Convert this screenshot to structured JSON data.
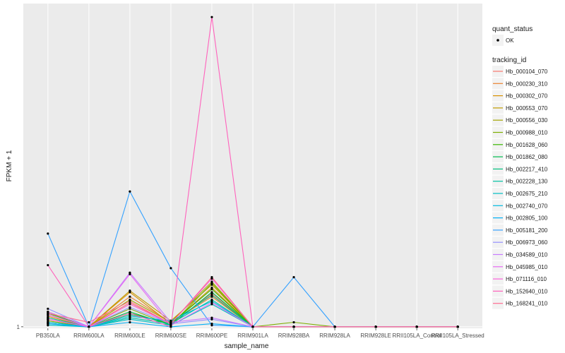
{
  "chart_data": {
    "type": "line",
    "xlabel": "sample_name",
    "ylabel": "FPKM + 1",
    "ytick": "1",
    "categories": [
      "PB350LA",
      "RRIM600LA",
      "RRIM600LE",
      "RRIM600SE",
      "RRIM600PE",
      "RRIM901LA",
      "RRIM928BA",
      "RRIM928LA",
      "RRIM928LE",
      "RRII105LA_Control",
      "RRII105LA_Stressed"
    ],
    "category_labels": [
      "PB350LA",
      "RRIM600LA",
      "RRIM600LE",
      "RRIM600SE",
      "RRIM600PE",
      "RRIM901LA",
      "RRIM928BA",
      "RRIM928LA",
      "RRIM928LE",
      "RRII105LA_Control",
      "RRII105LA_Stressed"
    ],
    "ylim": [
      0.9,
      22.5
    ],
    "legend": {
      "quant_title": "quant_status",
      "quant_label": "OK",
      "tracking_title": "tracking_id"
    },
    "series": [
      {
        "name": "Hb_000104_070",
        "color": "#F8766D",
        "values": [
          1.6,
          1.0,
          2.6,
          1.2,
          3.2,
          1.0,
          1.0,
          1.0,
          1.0,
          1.0,
          1.0
        ]
      },
      {
        "name": "Hb_000230_310",
        "color": "#EA8331",
        "values": [
          1.5,
          1.0,
          3.0,
          1.3,
          3.0,
          1.0,
          1.0,
          1.0,
          1.0,
          1.0,
          1.0
        ]
      },
      {
        "name": "Hb_000302_070",
        "color": "#D89000",
        "values": [
          1.7,
          1.0,
          3.3,
          1.2,
          3.6,
          1.0,
          1.0,
          1.0,
          1.0,
          1.0,
          1.0
        ]
      },
      {
        "name": "Hb_000553_070",
        "color": "#C09B00",
        "values": [
          2.0,
          1.0,
          3.4,
          1.4,
          3.8,
          1.0,
          1.0,
          1.0,
          1.0,
          1.0,
          1.0
        ]
      },
      {
        "name": "Hb_000556_030",
        "color": "#A3A500",
        "values": [
          1.8,
          1.0,
          2.8,
          1.3,
          4.0,
          1.0,
          1.0,
          1.0,
          1.0,
          1.0,
          1.0
        ]
      },
      {
        "name": "Hb_000988_010",
        "color": "#7CAE00",
        "values": [
          1.4,
          1.0,
          2.2,
          1.1,
          3.9,
          1.0,
          1.3,
          1.0,
          1.0,
          1.0,
          1.0
        ]
      },
      {
        "name": "Hb_001628_060",
        "color": "#39B600",
        "values": [
          1.9,
          1.0,
          1.9,
          1.2,
          3.5,
          1.0,
          1.0,
          1.0,
          1.0,
          1.0,
          1.0
        ]
      },
      {
        "name": "Hb_001862_080",
        "color": "#00BB4E",
        "values": [
          1.3,
          1.0,
          2.0,
          1.1,
          3.3,
          1.0,
          1.0,
          1.0,
          1.0,
          1.0,
          1.0
        ]
      },
      {
        "name": "Hb_002217_410",
        "color": "#00BF7D",
        "values": [
          1.2,
          1.0,
          1.8,
          1.3,
          3.1,
          1.0,
          1.0,
          1.0,
          1.0,
          1.0,
          1.0
        ]
      },
      {
        "name": "Hb_002228_130",
        "color": "#00C1A3",
        "values": [
          1.6,
          1.0,
          1.6,
          1.2,
          2.8,
          1.0,
          1.0,
          1.0,
          1.0,
          1.0,
          1.0
        ]
      },
      {
        "name": "Hb_002675_210",
        "color": "#00BFC4",
        "values": [
          1.1,
          1.0,
          1.5,
          1.1,
          2.5,
          1.0,
          1.0,
          1.0,
          1.0,
          1.0,
          1.0
        ]
      },
      {
        "name": "Hb_002740_070",
        "color": "#00BAE0",
        "values": [
          1.3,
          1.0,
          1.7,
          1.4,
          2.7,
          1.0,
          1.0,
          1.0,
          1.0,
          1.0,
          1.0
        ]
      },
      {
        "name": "Hb_002805_100",
        "color": "#00B0F6",
        "values": [
          1.2,
          1.0,
          1.3,
          1.0,
          1.2,
          1.0,
          1.0,
          1.0,
          1.0,
          1.0,
          1.0
        ]
      },
      {
        "name": "Hb_005181_200",
        "color": "#35A2FF",
        "values": [
          7.2,
          1.0,
          10.0,
          4.9,
          1.1,
          1.0,
          4.3,
          1.0,
          1.0,
          1.0,
          1.0
        ]
      },
      {
        "name": "Hb_006973_060",
        "color": "#9590FF",
        "values": [
          2.2,
          1.0,
          2.3,
          1.2,
          1.5,
          1.0,
          1.0,
          1.0,
          1.0,
          1.0,
          1.0
        ]
      },
      {
        "name": "Hb_034589_010",
        "color": "#C77CFF",
        "values": [
          2.0,
          1.0,
          4.6,
          1.3,
          1.6,
          1.0,
          1.0,
          1.0,
          1.0,
          1.0,
          1.0
        ]
      },
      {
        "name": "Hb_045985_010",
        "color": "#E76BF3",
        "values": [
          1.8,
          1.0,
          4.5,
          1.1,
          2.6,
          1.0,
          1.0,
          1.0,
          1.0,
          1.0,
          1.0
        ]
      },
      {
        "name": "Hb_071116_010",
        "color": "#FA62DB",
        "values": [
          1.5,
          1.0,
          2.5,
          1.2,
          4.2,
          1.0,
          1.0,
          1.0,
          1.0,
          1.0,
          1.0
        ]
      },
      {
        "name": "Hb_152640_010",
        "color": "#FF62BC",
        "values": [
          5.1,
          1.0,
          1.9,
          1.0,
          21.6,
          1.0,
          1.0,
          1.0,
          1.0,
          1.0,
          1.0
        ]
      },
      {
        "name": "Hb_168241_010",
        "color": "#FF6C91",
        "values": [
          1.9,
          1.3,
          2.7,
          1.2,
          4.3,
          1.0,
          1.0,
          1.0,
          1.0,
          1.0,
          1.0
        ]
      }
    ]
  }
}
